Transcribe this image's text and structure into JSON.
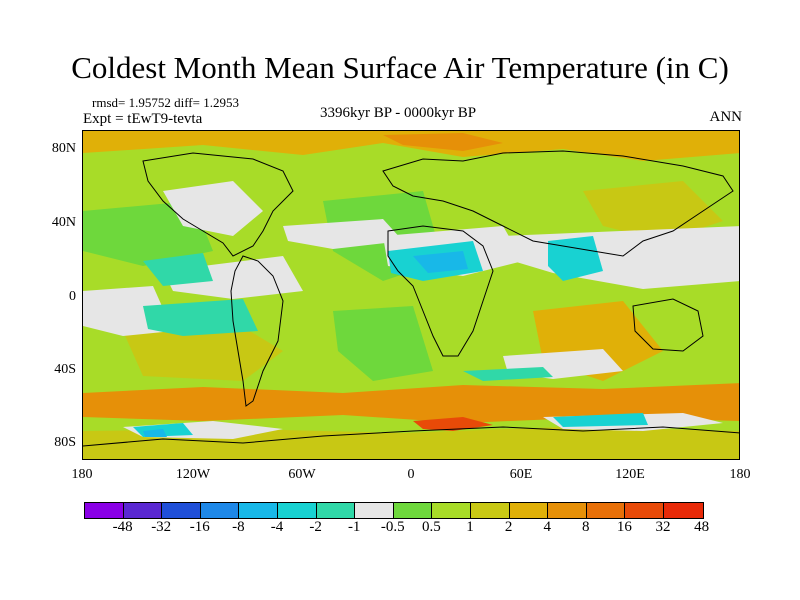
{
  "title": "Coldest Month Mean Surface Air Temperature (in C)",
  "stats_text": "rmsd= 1.95752  diff= 1.2953",
  "expt_text": "Expt = tEwT9-tevta",
  "period_text": "3396kyr BP - 0000kyr BP",
  "season_text": "ANN",
  "y_ticks": [
    "80N",
    "40N",
    "0",
    "40S",
    "80S"
  ],
  "x_ticks": [
    "180",
    "120W",
    "60W",
    "0",
    "60E",
    "120E",
    "180"
  ],
  "colorbar": {
    "colors": [
      "#8a00e6",
      "#5a28d2",
      "#1f4fd8",
      "#1e88e8",
      "#18b8e8",
      "#18d2d2",
      "#30d8a8",
      "#e6e6e6",
      "#6ed83c",
      "#a8dc28",
      "#c8c814",
      "#e0b008",
      "#e69008",
      "#e87008",
      "#e84a08",
      "#e82a08"
    ],
    "labels": [
      "-48",
      "-32",
      "-16",
      "-8",
      "-4",
      "-2",
      "-1",
      "-0.5",
      "0.5",
      "1",
      "2",
      "4",
      "8",
      "16",
      "32",
      "48"
    ]
  },
  "palette": {
    "background": "#a8dc28",
    "near_zero": "#e6e6e6",
    "warm_mild": "#c8c814",
    "warm": "#e0b008",
    "light_green": "#6ed83c",
    "teal": "#30d8a8",
    "cyan": "#18d2d2",
    "blue": "#18b8e8",
    "orange": "#e69008",
    "red_orange": "#e84a08"
  }
}
